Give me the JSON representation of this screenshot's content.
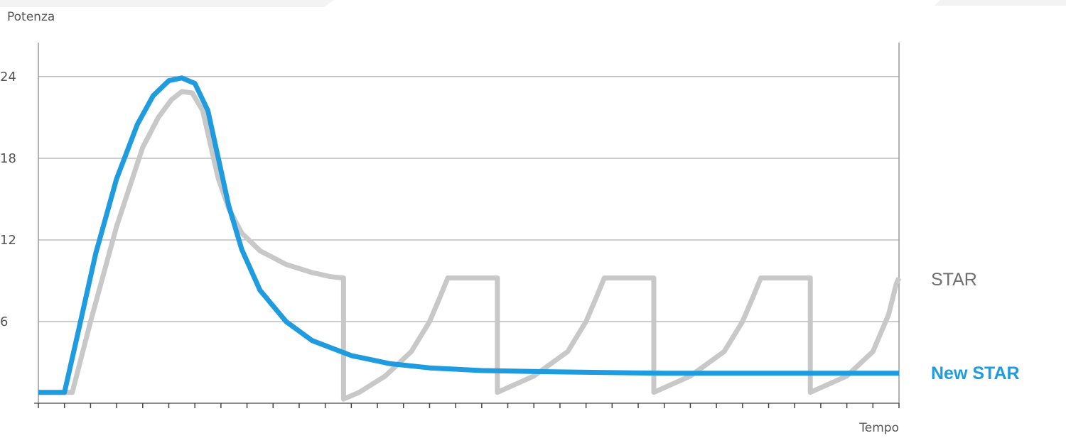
{
  "chart_data": {
    "type": "line",
    "xlabel": "Tempo",
    "ylabel": "Potenza",
    "yticks": [
      6,
      12,
      18,
      24
    ],
    "ylim": [
      0,
      26.5
    ],
    "xlim": [
      0,
      33
    ],
    "x_tick_count": 33,
    "grid": true,
    "legend_placement": "right",
    "series": [
      {
        "name": "STAR",
        "color": "#c8c8c8",
        "points": [
          [
            0,
            0.8
          ],
          [
            1.3,
            0.8
          ],
          [
            2.0,
            6.0
          ],
          [
            3.0,
            13.0
          ],
          [
            4.0,
            18.8
          ],
          [
            4.6,
            21.0
          ],
          [
            5.1,
            22.3
          ],
          [
            5.5,
            22.9
          ],
          [
            5.9,
            22.8
          ],
          [
            6.3,
            21.5
          ],
          [
            6.6,
            19.0
          ],
          [
            6.9,
            16.5
          ],
          [
            7.3,
            14.3
          ],
          [
            7.8,
            12.5
          ],
          [
            8.5,
            11.2
          ],
          [
            9.5,
            10.2
          ],
          [
            10.5,
            9.6
          ],
          [
            11.2,
            9.3
          ],
          [
            11.7,
            9.2
          ],
          [
            11.7,
            0.3
          ],
          [
            12.3,
            0.8
          ],
          [
            13.3,
            2.0
          ],
          [
            14.3,
            3.8
          ],
          [
            15.0,
            6.0
          ],
          [
            15.4,
            7.8
          ],
          [
            15.7,
            9.2
          ],
          [
            17.6,
            9.2
          ],
          [
            17.6,
            0.8
          ],
          [
            19.0,
            2.0
          ],
          [
            20.3,
            3.8
          ],
          [
            21.0,
            6.0
          ],
          [
            21.4,
            7.8
          ],
          [
            21.7,
            9.2
          ],
          [
            23.6,
            9.2
          ],
          [
            23.6,
            0.8
          ],
          [
            25.0,
            2.0
          ],
          [
            26.3,
            3.8
          ],
          [
            27.0,
            6.0
          ],
          [
            27.4,
            7.8
          ],
          [
            27.7,
            9.2
          ],
          [
            29.6,
            9.2
          ],
          [
            29.6,
            0.8
          ],
          [
            31.0,
            2.0
          ],
          [
            32.0,
            3.8
          ],
          [
            32.6,
            6.5
          ],
          [
            32.9,
            8.8
          ],
          [
            33.0,
            9.2
          ]
        ]
      },
      {
        "name": "New STAR",
        "color": "#1f9be0",
        "points": [
          [
            0,
            0.8
          ],
          [
            1.0,
            0.8
          ],
          [
            1.5,
            5.0
          ],
          [
            2.2,
            11.0
          ],
          [
            3.0,
            16.5
          ],
          [
            3.8,
            20.5
          ],
          [
            4.4,
            22.6
          ],
          [
            5.0,
            23.7
          ],
          [
            5.5,
            23.9
          ],
          [
            6.0,
            23.5
          ],
          [
            6.5,
            21.5
          ],
          [
            6.9,
            18.0
          ],
          [
            7.3,
            14.5
          ],
          [
            7.8,
            11.3
          ],
          [
            8.5,
            8.3
          ],
          [
            9.5,
            6.0
          ],
          [
            10.5,
            4.6
          ],
          [
            12.0,
            3.5
          ],
          [
            13.5,
            2.9
          ],
          [
            15.0,
            2.6
          ],
          [
            17.0,
            2.4
          ],
          [
            20.0,
            2.3
          ],
          [
            24.0,
            2.2
          ],
          [
            28.0,
            2.2
          ],
          [
            33.0,
            2.2
          ]
        ]
      }
    ]
  },
  "labels": {
    "y_axis_title": "Potenza",
    "x_axis_title": "Tempo",
    "legend_star": "STAR",
    "legend_new_star": "New STAR"
  }
}
